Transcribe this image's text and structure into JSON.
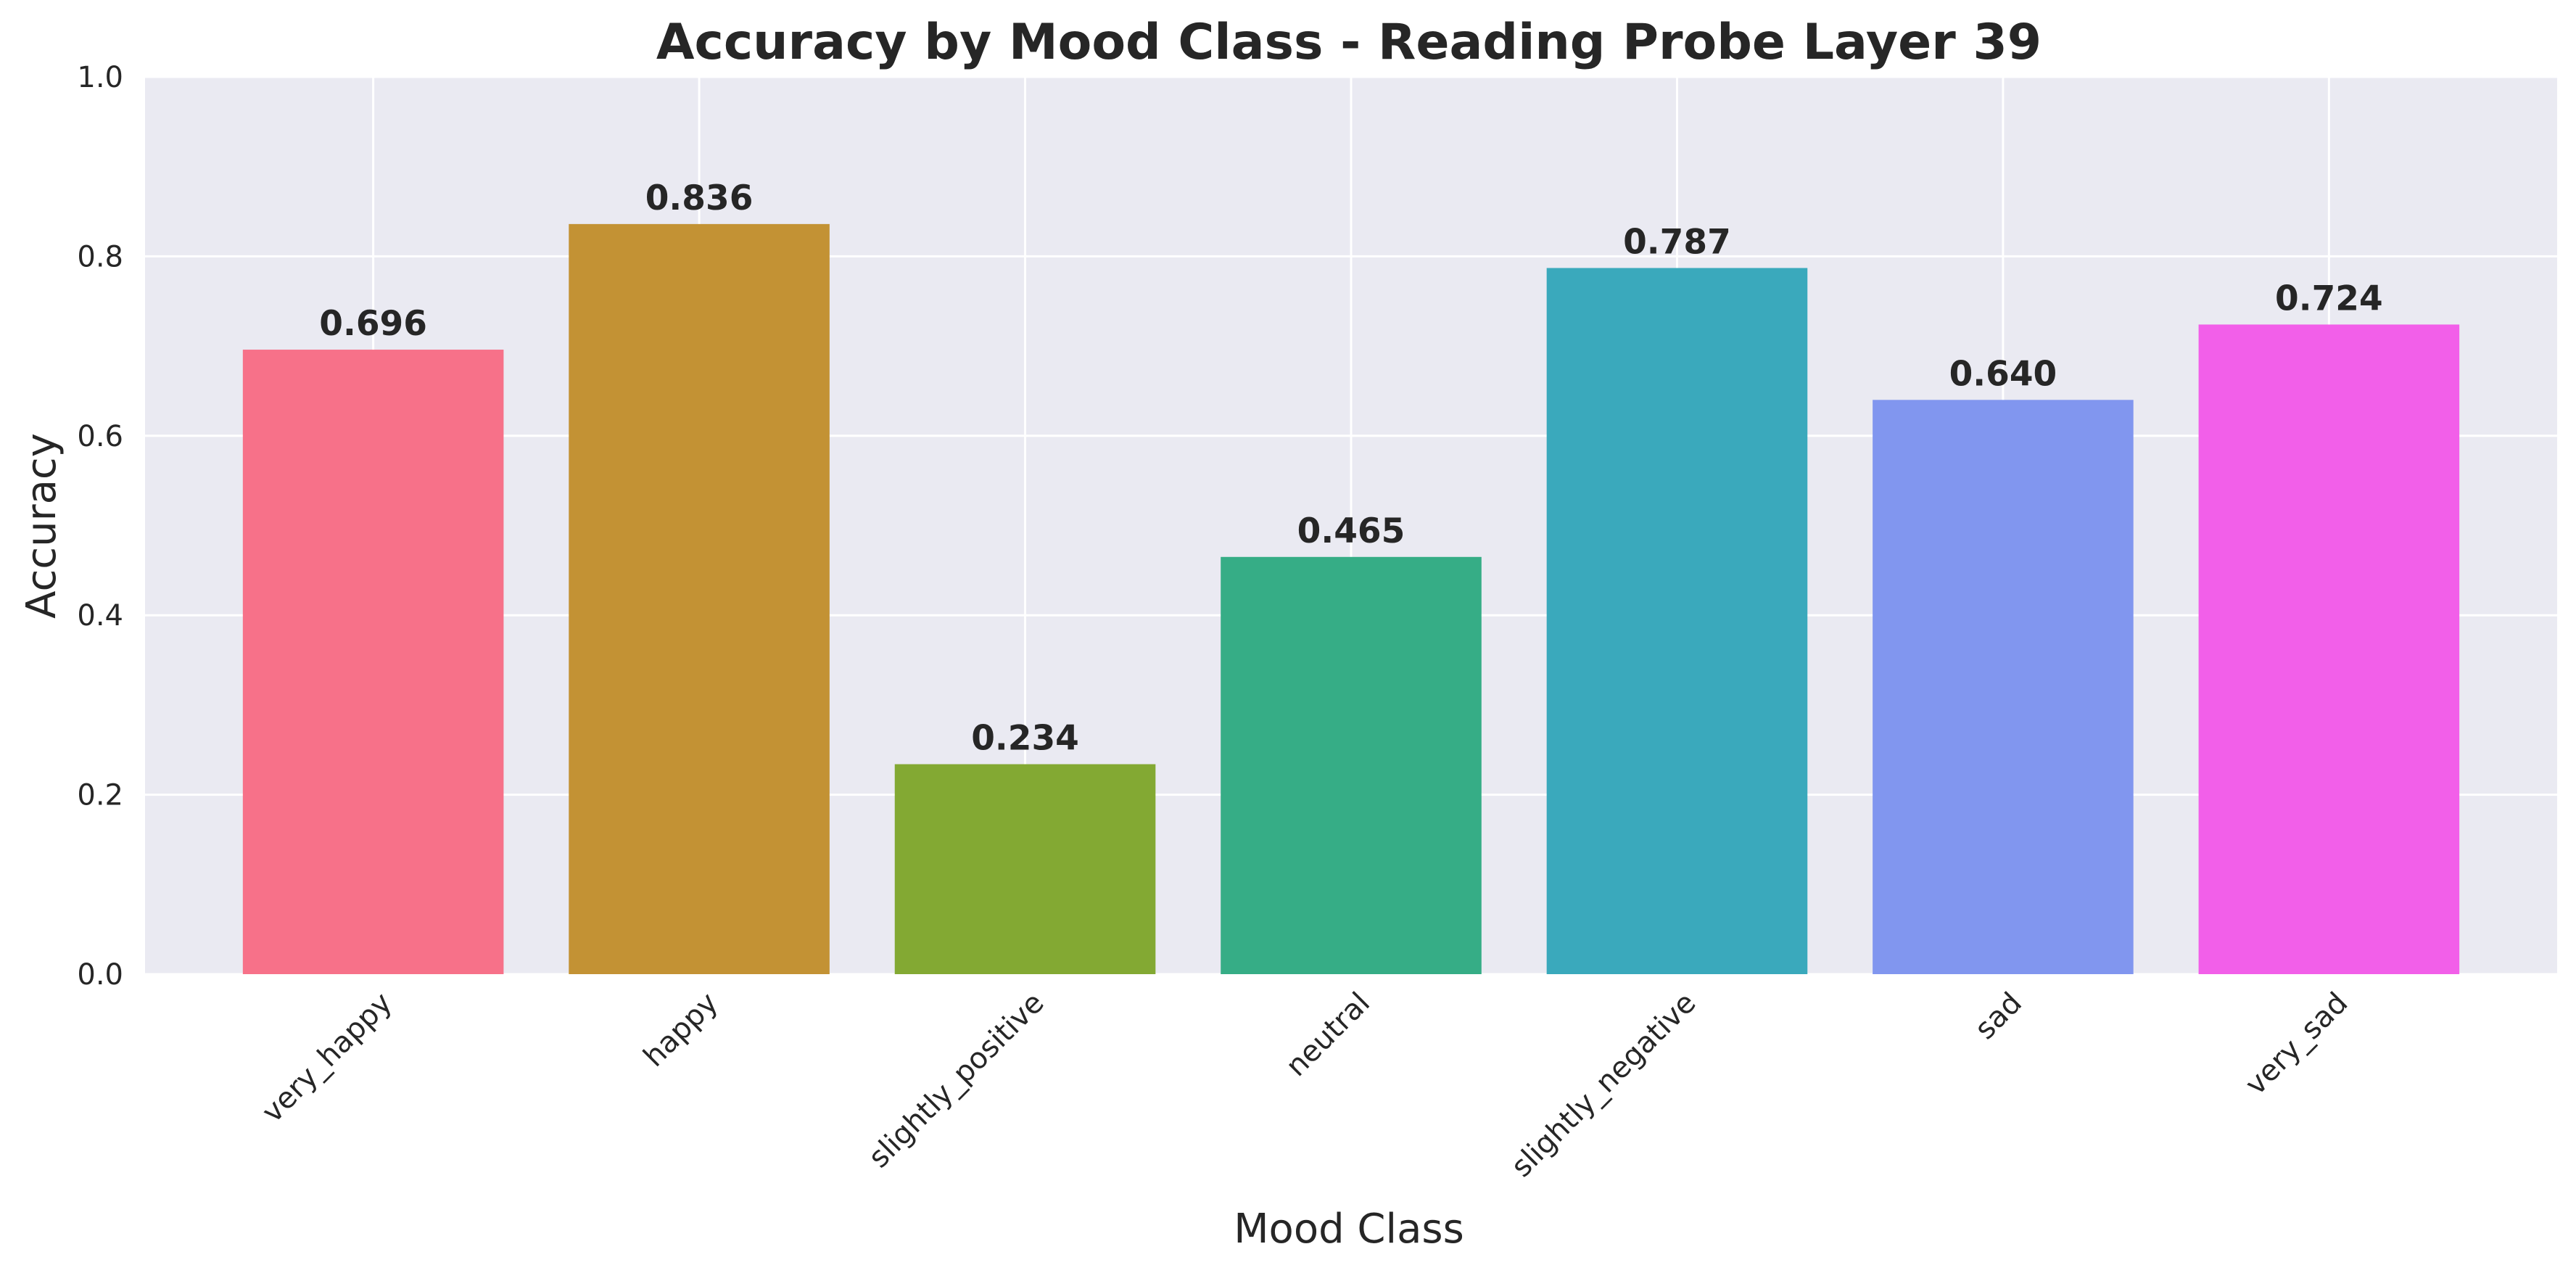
{
  "chart_data": {
    "type": "bar",
    "title": "Accuracy by Mood Class - Reading Probe Layer 39",
    "xlabel": "Mood Class",
    "ylabel": "Accuracy",
    "ylim": [
      0,
      1.0
    ],
    "yticks": [
      0.0,
      0.2,
      0.4,
      0.6,
      0.8,
      1.0
    ],
    "ytick_labels": [
      "0.0",
      "0.2",
      "0.4",
      "0.6",
      "0.8",
      "1.0"
    ],
    "categories": [
      "very_happy",
      "happy",
      "slightly_positive",
      "neutral",
      "slightly_negative",
      "sad",
      "very_sad"
    ],
    "values": [
      0.696,
      0.836,
      0.234,
      0.465,
      0.787,
      0.64,
      0.724
    ],
    "value_labels": [
      "0.696",
      "0.836",
      "0.234",
      "0.465",
      "0.787",
      "0.640",
      "0.724"
    ],
    "colors": [
      "#f77189",
      "#c39234",
      "#83a933",
      "#36ad86",
      "#3aa9bc",
      "#8196ef",
      "#f25fe9"
    ],
    "background": "#eaeaf2",
    "grid": true,
    "grid_color": "#ffffff"
  }
}
